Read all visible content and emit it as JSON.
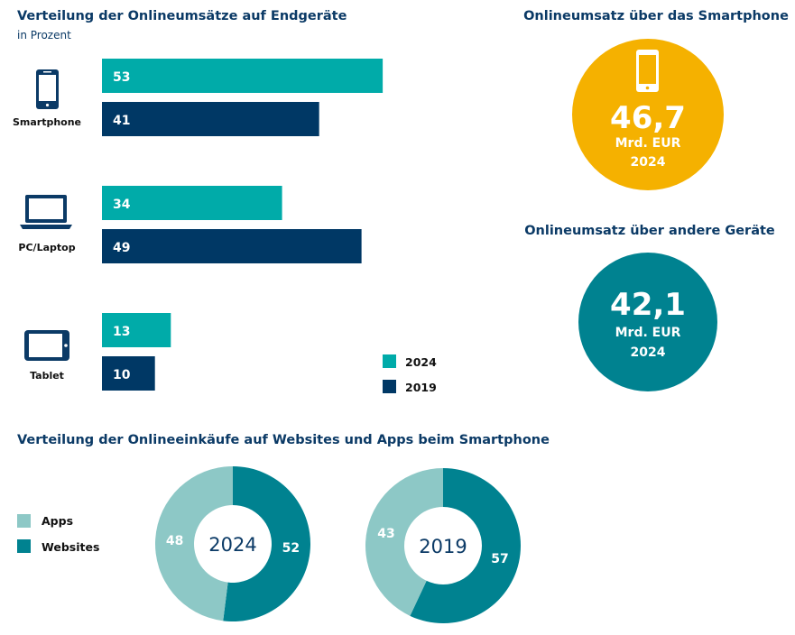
{
  "colors": {
    "y2024": "#00aba9",
    "y2019": "#003865",
    "apps": "#8dc8c6",
    "websites": "#008290",
    "smartphone_circle": "#f5b100",
    "other_circle": "#008290",
    "title": "#0b3a66"
  },
  "chart_data": [
    {
      "type": "bar",
      "orientation": "horizontal",
      "title": "Verteilung der Onlineumsätze auf Endgeräte",
      "subtitle": "in Prozent",
      "categories": [
        "Smartphone",
        "PC/Laptop",
        "Tablet"
      ],
      "category_icons": [
        "smartphone-icon",
        "laptop-icon",
        "tablet-icon"
      ],
      "series": [
        {
          "name": "2024",
          "values": [
            53,
            34,
            13
          ]
        },
        {
          "name": "2019",
          "values": [
            41,
            49,
            10
          ]
        }
      ],
      "legend": "bottom-right"
    },
    {
      "type": "pie",
      "variant": "donut",
      "title": "Verteilung der Onlineeinkäufe auf Websites und Apps beim Smartphone",
      "legend": [
        "Apps",
        "Websites"
      ],
      "charts": [
        {
          "label": "2024",
          "values": {
            "Apps": 48,
            "Websites": 52
          }
        },
        {
          "label": "2019",
          "values": {
            "Apps": 43,
            "Websites": 57
          }
        }
      ]
    }
  ],
  "kpis": [
    {
      "title": "Onlineumsatz über das Smartphone",
      "value": "46,7",
      "unit": "Mrd. EUR",
      "year": "2024",
      "icon": "smartphone-icon"
    },
    {
      "title": "Onlineumsatz über andere Geräte",
      "value": "42,1",
      "unit": "Mrd. EUR",
      "year": "2024"
    }
  ]
}
